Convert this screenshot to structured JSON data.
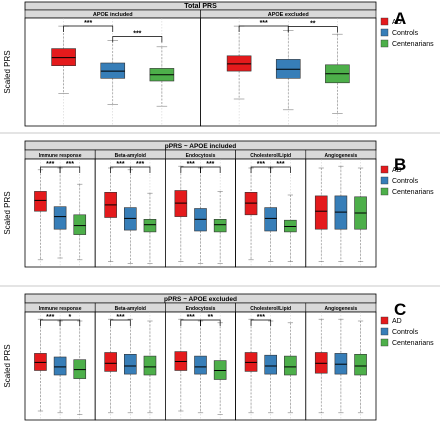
{
  "colors": {
    "AD": "#e41a1c",
    "Controls": "#377eb8",
    "Centenarians": "#4daf4a",
    "strip": "#d9d9d9",
    "grid": "#bdbdbd",
    "whisker": "#808080"
  },
  "legend": {
    "items": [
      "AD",
      "Controls",
      "Centenarians"
    ]
  },
  "chart_data": [
    {
      "panel_letter": "A",
      "type": "boxplot",
      "title": "Total PRS",
      "ylabel": "Scaled PRS",
      "legend_position": "right",
      "ylim": [
        -3,
        3
      ],
      "groups": [
        "AD",
        "Controls",
        "Centenarians"
      ],
      "facets": [
        {
          "label": "APOE included",
          "boxes": [
            {
              "group": "AD",
              "min": -1.2,
              "q1": 0.35,
              "median": 0.8,
              "q3": 1.3,
              "max": 2.55
            },
            {
              "group": "Controls",
              "min": -1.8,
              "q1": -0.35,
              "median": 0.05,
              "q3": 0.5,
              "max": 1.75
            },
            {
              "group": "Centenarians",
              "min": -1.9,
              "q1": -0.5,
              "median": -0.15,
              "q3": 0.2,
              "max": 1.4
            }
          ],
          "significance": [
            {
              "between": [
                "AD",
                "Controls"
              ],
              "label": "***"
            },
            {
              "between": [
                "Controls",
                "Centenarians"
              ],
              "label": "***"
            }
          ]
        },
        {
          "label": "APOE excluded",
          "boxes": [
            {
              "group": "AD",
              "min": -1.5,
              "q1": 0.05,
              "median": 0.45,
              "q3": 0.9,
              "max": 2.55
            },
            {
              "group": "Controls",
              "min": -2.1,
              "q1": -0.35,
              "median": 0.15,
              "q3": 0.7,
              "max": 2.3
            },
            {
              "group": "Centenarians",
              "min": -2.3,
              "q1": -0.6,
              "median": -0.1,
              "q3": 0.4,
              "max": 2.1
            }
          ],
          "significance": [
            {
              "between": [
                "AD",
                "Controls"
              ],
              "label": "***"
            },
            {
              "between": [
                "Controls",
                "Centenarians"
              ],
              "label": "**"
            }
          ]
        }
      ]
    },
    {
      "panel_letter": "B",
      "type": "boxplot",
      "title": "pPRS ~ APOE included",
      "ylabel": "Scaled PRS",
      "legend_position": "right",
      "ylim": [
        -3,
        3
      ],
      "groups": [
        "AD",
        "Controls",
        "Centenarians"
      ],
      "facets": [
        {
          "label": "Immune response",
          "boxes": [
            {
              "group": "AD",
              "min": -2.6,
              "q1": 0.1,
              "median": 0.7,
              "q3": 1.2,
              "max": 2.4
            },
            {
              "group": "Controls",
              "min": -2.5,
              "q1": -0.9,
              "median": -0.2,
              "q3": 0.35,
              "max": 2.5
            },
            {
              "group": "Centenarians",
              "min": -2.6,
              "q1": -1.2,
              "median": -0.7,
              "q3": -0.1,
              "max": 1.6
            }
          ],
          "significance": [
            {
              "between": [
                "AD",
                "Controls"
              ],
              "label": "***"
            },
            {
              "between": [
                "Controls",
                "Centenarians"
              ],
              "label": "***"
            }
          ]
        },
        {
          "label": "Beta-amyloid",
          "boxes": [
            {
              "group": "AD",
              "min": -2.7,
              "q1": -0.25,
              "median": 0.45,
              "q3": 1.15,
              "max": 2.5
            },
            {
              "group": "Controls",
              "min": -2.8,
              "q1": -0.95,
              "median": -0.3,
              "q3": 0.3,
              "max": 2.4
            },
            {
              "group": "Centenarians",
              "min": -2.8,
              "q1": -1.05,
              "median": -0.65,
              "q3": -0.35,
              "max": 1.1
            }
          ],
          "significance": [
            {
              "between": [
                "AD",
                "Controls"
              ],
              "label": "***"
            },
            {
              "between": [
                "Controls",
                "Centenarians"
              ],
              "label": "***"
            }
          ]
        },
        {
          "label": "Endocytosis",
          "boxes": [
            {
              "group": "AD",
              "min": -2.7,
              "q1": -0.2,
              "median": 0.55,
              "q3": 1.25,
              "max": 2.6
            },
            {
              "group": "Controls",
              "min": -2.8,
              "q1": -1.0,
              "median": -0.35,
              "q3": 0.25,
              "max": 2.5
            },
            {
              "group": "Centenarians",
              "min": -2.8,
              "q1": -1.05,
              "median": -0.65,
              "q3": -0.35,
              "max": 1.2
            }
          ],
          "significance": [
            {
              "between": [
                "AD",
                "Controls"
              ],
              "label": "***"
            },
            {
              "between": [
                "Controls",
                "Centenarians"
              ],
              "label": "***"
            }
          ]
        },
        {
          "label": "Cholesterol/Lipid",
          "boxes": [
            {
              "group": "AD",
              "min": -2.6,
              "q1": -0.1,
              "median": 0.55,
              "q3": 1.15,
              "max": 2.5
            },
            {
              "group": "Controls",
              "min": -2.7,
              "q1": -1.0,
              "median": -0.3,
              "q3": 0.3,
              "max": 2.5
            },
            {
              "group": "Centenarians",
              "min": -2.7,
              "q1": -1.05,
              "median": -0.75,
              "q3": -0.4,
              "max": 1.0
            }
          ],
          "significance": [
            {
              "between": [
                "AD",
                "Controls"
              ],
              "label": "***"
            },
            {
              "between": [
                "Controls",
                "Centenarians"
              ],
              "label": "***"
            }
          ]
        },
        {
          "label": "Angiogenesis",
          "boxes": [
            {
              "group": "AD",
              "min": -2.7,
              "q1": -0.9,
              "median": 0.1,
              "q3": 0.95,
              "max": 2.5
            },
            {
              "group": "Controls",
              "min": -2.7,
              "q1": -0.9,
              "median": 0.05,
              "q3": 0.95,
              "max": 2.6
            },
            {
              "group": "Centenarians",
              "min": -2.7,
              "q1": -0.9,
              "median": 0.0,
              "q3": 0.9,
              "max": 2.5
            }
          ],
          "significance": []
        }
      ]
    },
    {
      "panel_letter": "C",
      "type": "boxplot",
      "title": "pPRS ~ APOE excluded",
      "ylabel": "Scaled PRS",
      "legend_position": "right",
      "ylim": [
        -3,
        3
      ],
      "groups": [
        "AD",
        "Controls",
        "Centenarians"
      ],
      "facets": [
        {
          "label": "Immune response",
          "boxes": [
            {
              "group": "AD",
              "min": -2.5,
              "q1": -0.25,
              "median": 0.2,
              "q3": 0.7,
              "max": 2.6
            },
            {
              "group": "Controls",
              "min": -2.6,
              "q1": -0.5,
              "median": -0.05,
              "q3": 0.5,
              "max": 2.5
            },
            {
              "group": "Centenarians",
              "min": -2.7,
              "q1": -0.7,
              "median": -0.2,
              "q3": 0.35,
              "max": 2.5
            }
          ],
          "significance": [
            {
              "between": [
                "AD",
                "Controls"
              ],
              "label": "***"
            },
            {
              "between": [
                "Controls",
                "Centenarians"
              ],
              "label": "*"
            }
          ]
        },
        {
          "label": "Beta-amyloid",
          "boxes": [
            {
              "group": "AD",
              "min": -2.6,
              "q1": -0.3,
              "median": 0.15,
              "q3": 0.75,
              "max": 2.6
            },
            {
              "group": "Controls",
              "min": -2.6,
              "q1": -0.45,
              "median": 0.0,
              "q3": 0.65,
              "max": 2.6
            },
            {
              "group": "Centenarians",
              "min": -2.6,
              "q1": -0.5,
              "median": -0.05,
              "q3": 0.55,
              "max": 2.5
            }
          ],
          "significance": [
            {
              "between": [
                "AD",
                "Controls"
              ],
              "label": "***"
            }
          ]
        },
        {
          "label": "Endocytosis",
          "boxes": [
            {
              "group": "AD",
              "min": -2.5,
              "q1": -0.25,
              "median": 0.25,
              "q3": 0.8,
              "max": 2.6
            },
            {
              "group": "Controls",
              "min": -2.6,
              "q1": -0.45,
              "median": -0.05,
              "q3": 0.55,
              "max": 2.5
            },
            {
              "group": "Centenarians",
              "min": -2.7,
              "q1": -0.75,
              "median": -0.25,
              "q3": 0.3,
              "max": 2.4
            }
          ],
          "significance": [
            {
              "between": [
                "AD",
                "Controls"
              ],
              "label": "***"
            },
            {
              "between": [
                "Controls",
                "Centenarians"
              ],
              "label": "**"
            }
          ]
        },
        {
          "label": "Cholesterol/Lipid",
          "boxes": [
            {
              "group": "AD",
              "min": -2.6,
              "q1": -0.3,
              "median": 0.2,
              "q3": 0.75,
              "max": 2.6
            },
            {
              "group": "Controls",
              "min": -2.6,
              "q1": -0.45,
              "median": 0.0,
              "q3": 0.6,
              "max": 2.5
            },
            {
              "group": "Centenarians",
              "min": -2.6,
              "q1": -0.5,
              "median": -0.05,
              "q3": 0.55,
              "max": 2.4
            }
          ],
          "significance": [
            {
              "between": [
                "AD",
                "Controls"
              ],
              "label": "***"
            }
          ]
        },
        {
          "label": "Angiogenesis",
          "boxes": [
            {
              "group": "AD",
              "min": -2.6,
              "q1": -0.4,
              "median": 0.15,
              "q3": 0.75,
              "max": 2.6
            },
            {
              "group": "Controls",
              "min": -2.6,
              "q1": -0.45,
              "median": 0.1,
              "q3": 0.7,
              "max": 2.6
            },
            {
              "group": "Centenarians",
              "min": -2.6,
              "q1": -0.5,
              "median": 0.0,
              "q3": 0.65,
              "max": 2.5
            }
          ],
          "significance": []
        }
      ]
    }
  ]
}
